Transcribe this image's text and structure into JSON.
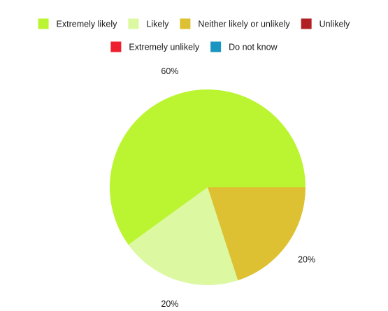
{
  "chart_data": {
    "type": "pie",
    "title": "",
    "start_angle_deg": 0,
    "direction": "counterclockwise",
    "legend_position": "top",
    "slices": [
      {
        "label": "Extremely likely",
        "value": 60,
        "display": "60%",
        "color": "#bbf532"
      },
      {
        "label": "Likely",
        "value": 20,
        "display": "20%",
        "color": "#dcf8a0"
      },
      {
        "label": "Neither likely or unlikely",
        "value": 20,
        "display": "20%",
        "color": "#ddc132"
      },
      {
        "label": "Unlikely",
        "value": 0,
        "display": "0%",
        "color": "#b02024"
      },
      {
        "label": "Extremely unlikely",
        "value": 0,
        "display": "0%",
        "color": "#ee2030"
      },
      {
        "label": "Do not know",
        "value": 0,
        "display": "0%",
        "color": "#1a95c2"
      }
    ]
  }
}
